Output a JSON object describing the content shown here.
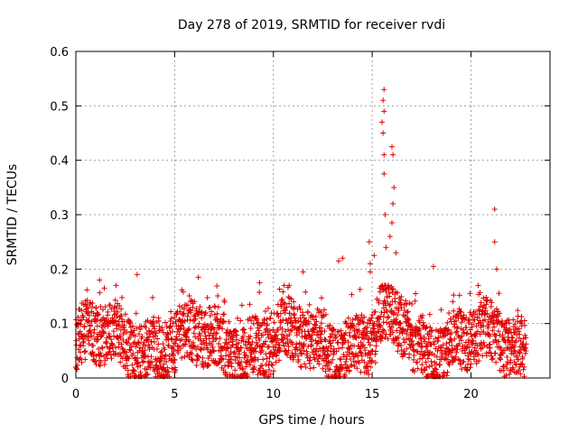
{
  "chart_data": {
    "type": "scatter",
    "title": "Day 278 of 2019, SRMTID for receiver rvdi",
    "xlabel": "GPS time / hours",
    "ylabel": "SRMTID / TECUs",
    "xlim": [
      0,
      24
    ],
    "ylim": [
      0,
      0.6
    ],
    "xticks": [
      0,
      5,
      10,
      15,
      20
    ],
    "yticks": [
      0,
      0.1,
      0.2,
      0.3,
      0.4,
      0.5,
      0.6
    ],
    "xtick_labels": [
      "0",
      "5",
      "10",
      "15",
      "20"
    ],
    "ytick_labels": [
      "0",
      "0.1",
      "0.2",
      "0.3",
      "0.4",
      "0.5",
      "0.6"
    ],
    "grid": true,
    "marker": "+",
    "marker_color": "#e00000",
    "series": [
      {
        "name": "SRMTID",
        "x_range": [
          0,
          22.8
        ],
        "baseline_range": [
          0.0,
          0.16
        ],
        "peaks": [
          {
            "x": 15.6,
            "y": 0.53
          },
          {
            "x": 15.55,
            "y": 0.51
          },
          {
            "x": 15.6,
            "y": 0.49
          },
          {
            "x": 15.5,
            "y": 0.47
          },
          {
            "x": 15.55,
            "y": 0.45
          },
          {
            "x": 15.6,
            "y": 0.41
          },
          {
            "x": 16.0,
            "y": 0.425
          },
          {
            "x": 16.05,
            "y": 0.41
          },
          {
            "x": 15.6,
            "y": 0.375
          },
          {
            "x": 16.1,
            "y": 0.35
          },
          {
            "x": 16.05,
            "y": 0.32
          },
          {
            "x": 15.65,
            "y": 0.3
          },
          {
            "x": 16.0,
            "y": 0.285
          },
          {
            "x": 15.9,
            "y": 0.26
          },
          {
            "x": 15.7,
            "y": 0.24
          },
          {
            "x": 16.2,
            "y": 0.23
          },
          {
            "x": 14.85,
            "y": 0.25
          },
          {
            "x": 15.1,
            "y": 0.225
          },
          {
            "x": 14.9,
            "y": 0.21
          },
          {
            "x": 14.9,
            "y": 0.195
          },
          {
            "x": 21.2,
            "y": 0.31
          },
          {
            "x": 21.2,
            "y": 0.25
          },
          {
            "x": 21.3,
            "y": 0.2
          },
          {
            "x": 3.1,
            "y": 0.19
          },
          {
            "x": 6.2,
            "y": 0.185
          },
          {
            "x": 9.3,
            "y": 0.175
          },
          {
            "x": 11.5,
            "y": 0.195
          },
          {
            "x": 13.3,
            "y": 0.215
          },
          {
            "x": 13.5,
            "y": 0.22
          },
          {
            "x": 18.1,
            "y": 0.205
          },
          {
            "x": 1.2,
            "y": 0.18
          },
          {
            "x": 10.8,
            "y": 0.17
          }
        ]
      }
    ]
  }
}
